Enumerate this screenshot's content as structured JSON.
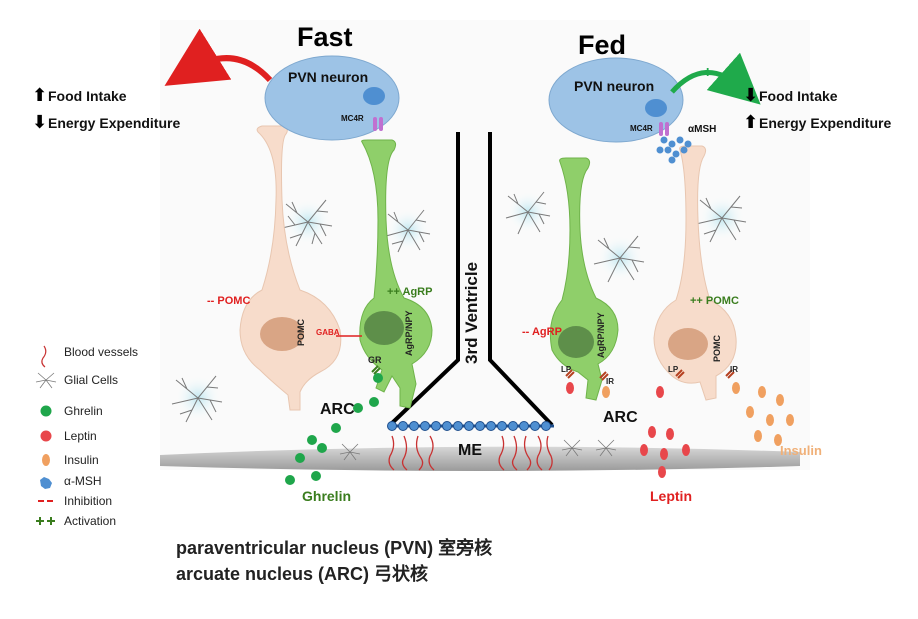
{
  "panels": {
    "fast": {
      "title": "Fast",
      "pvn_label": "PVN  neuron",
      "mc4r_label": "MC4R",
      "effects": [
        {
          "arrow": "up",
          "label": "Food Intake"
        },
        {
          "arrow": "down",
          "label": "Energy Expenditure"
        }
      ],
      "pomc_status": "-- POMC",
      "agrp_status": "++ AgRP",
      "pomc_cell_label": "POMC",
      "agrp_cell_label": "AgRP/NPY",
      "gaba_label": "GABA",
      "gr_label": "GR",
      "arc_label": "ARC",
      "hormone_label": "Ghrelin"
    },
    "fed": {
      "title": "Fed",
      "pvn_label": "PVN  neuron",
      "mc4r_label": "MC4R",
      "amsh_label": "αMSH",
      "activation_mark": "+",
      "effects": [
        {
          "arrow": "down",
          "label": "Food Intake"
        },
        {
          "arrow": "up",
          "label": "Energy Expenditure"
        }
      ],
      "agrp_status": "-- AgRP",
      "pomc_status": "++ POMC",
      "agrp_cell_label": "AgRP/NPY",
      "pomc_cell_label": "POMC",
      "lp_label": "LP",
      "ir_label": "IR",
      "arc_label": "ARC",
      "leptin_label": "Leptin",
      "insulin_label": "Insulin"
    }
  },
  "center": {
    "ventricle_label": "3rd Ventricle",
    "me_label": "ME"
  },
  "legend": [
    {
      "icon": "blood-vessel",
      "label": "Blood vessels"
    },
    {
      "icon": "glial-cell",
      "label": "Glial Cells"
    },
    {
      "icon": "ghrelin-dot",
      "label": "Ghrelin"
    },
    {
      "icon": "leptin-dot",
      "label": "Leptin"
    },
    {
      "icon": "insulin-dot",
      "label": "Insulin"
    },
    {
      "icon": "amsh-shape",
      "label": "α-MSH"
    },
    {
      "icon": "inhibition-mark",
      "label": "Inhibition"
    },
    {
      "icon": "activation-mark",
      "label": "Activation"
    }
  ],
  "caption": {
    "line1": "paraventricular nucleus (PVN) 室旁核",
    "line2": "arcuate nucleus (ARC) 弓状核"
  },
  "colors": {
    "pvn_fill": "#9dc3e6",
    "pvn_nucleus": "#4f8fd1",
    "pomc_fill": "#f7dccb",
    "pomc_nucleus": "#d9a585",
    "agrp_fill": "#8fcf6a",
    "agrp_nucleus": "#5e8f4a",
    "ghrelin": "#1fa64b",
    "leptin": "#e8474b",
    "insulin": "#f0a060",
    "inhibit_red": "#e02020",
    "activate_green": "#3a7d1e",
    "fast_arrow": "#e02020",
    "fed_arrow": "#1faa4b"
  }
}
